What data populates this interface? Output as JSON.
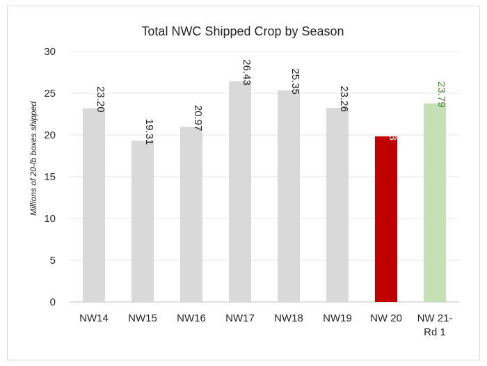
{
  "chart_data": {
    "type": "bar",
    "title": "Total NWC Shipped Crop by Season",
    "xlabel": "",
    "ylabel": "Millions of 20-lb boxes shipped",
    "ylim": [
      0,
      30
    ],
    "yticks": [
      0,
      5,
      10,
      15,
      20,
      25,
      30
    ],
    "grid": true,
    "categories": [
      "NW14",
      "NW15",
      "NW16",
      "NW17",
      "NW18",
      "NW19",
      "NW 20",
      "NW 21-\nRd 1"
    ],
    "category_lines": [
      [
        "NW14"
      ],
      [
        "NW15"
      ],
      [
        "NW16"
      ],
      [
        "NW17"
      ],
      [
        "NW18"
      ],
      [
        "NW19"
      ],
      [
        "NW 20"
      ],
      [
        "NW 21-",
        "Rd 1"
      ]
    ],
    "values": [
      23.2,
      19.31,
      20.97,
      26.43,
      25.35,
      23.26,
      19.83,
      23.79
    ],
    "data_labels": [
      "23.20",
      "19.31",
      "20.97",
      "26.43",
      "25.35",
      "23.26",
      "19.83",
      "23.79"
    ],
    "bar_colors": [
      "#d9d9d9",
      "#d9d9d9",
      "#d9d9d9",
      "#d9d9d9",
      "#d9d9d9",
      "#d9d9d9",
      "#c00000",
      "#c5e0b4"
    ],
    "label_colors": [
      "#1f1f1f",
      "#1f1f1f",
      "#1f1f1f",
      "#1f1f1f",
      "#1f1f1f",
      "#1f1f1f",
      "#ffffff",
      "#4e8a3a"
    ]
  }
}
